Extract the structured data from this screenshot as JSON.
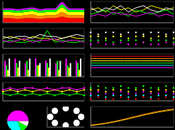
{
  "chart_data": [
    {
      "type": "area",
      "stacked": true,
      "grid": false,
      "tick_labels": false,
      "categories": [
        null,
        null,
        null,
        null,
        null,
        null,
        null,
        null,
        null,
        null,
        null,
        null
      ],
      "ylim": [
        0,
        14
      ],
      "series": [
        {
          "color": "#ff0000",
          "values": [
            3,
            3,
            2.5,
            3,
            3,
            2.5,
            3,
            3,
            4,
            3,
            3,
            3
          ]
        },
        {
          "color": "#ff8800",
          "values": [
            2,
            2,
            2,
            2,
            2.5,
            2,
            2,
            2,
            3,
            2,
            2,
            2
          ]
        },
        {
          "color": "#ffff00",
          "values": [
            2,
            2,
            2,
            2,
            2,
            2,
            2,
            2,
            3,
            2,
            2,
            2
          ]
        },
        {
          "color": "#00ff00",
          "values": [
            1.5,
            1.5,
            1.5,
            1.5,
            1.5,
            1.5,
            1.5,
            1.5,
            2,
            1.5,
            1.5,
            1.5
          ]
        },
        {
          "color": "#cc00ff",
          "values": [
            1,
            1,
            1,
            1,
            1,
            1,
            1,
            1,
            1.5,
            1,
            1,
            1
          ]
        }
      ]
    },
    {
      "type": "line",
      "grid": true,
      "tick_labels": false,
      "marker": "none",
      "line_style": "solid",
      "categories": [
        null,
        null,
        null,
        null,
        null,
        null,
        null,
        null,
        null,
        null,
        null,
        null
      ],
      "ylim": [
        0,
        10
      ],
      "series": [
        {
          "color": "#ffff00",
          "values": [
            6,
            7,
            5,
            8,
            6,
            7,
            5,
            6,
            8,
            7,
            6,
            7
          ]
        },
        {
          "color": "#00ff00",
          "values": [
            4,
            5,
            6,
            4,
            5,
            3,
            6,
            5,
            4,
            5,
            6,
            4
          ]
        },
        {
          "color": "#ffffff",
          "values": [
            7,
            5,
            7,
            6,
            8,
            5,
            7,
            8,
            6,
            5,
            7,
            6
          ]
        },
        {
          "color": "#ff00ff",
          "values": [
            3,
            4,
            3,
            5,
            4,
            4,
            3,
            4,
            5,
            3,
            4,
            3
          ]
        }
      ]
    },
    {
      "type": "line",
      "grid": true,
      "tick_labels": false,
      "marker": "none",
      "line_style": "solid",
      "categories": [
        null,
        null,
        null,
        null,
        null,
        null,
        null,
        null,
        null,
        null,
        null,
        null
      ],
      "ylim": [
        0,
        10
      ],
      "series": [
        {
          "color": "#ffff00",
          "values": [
            5,
            6,
            5,
            4,
            6,
            5,
            5,
            4,
            5,
            6,
            5,
            5
          ]
        },
        {
          "color": "#00ff00",
          "values": [
            3,
            4,
            3,
            3,
            4,
            3,
            9,
            3,
            4,
            3,
            3,
            4
          ]
        },
        {
          "color": "#ffffff",
          "values": [
            6,
            5,
            6,
            6,
            5,
            7,
            6,
            6,
            5,
            6,
            7,
            6
          ]
        },
        {
          "color": "#ff00ff",
          "values": [
            4,
            3,
            4,
            5,
            3,
            4,
            4,
            5,
            3,
            4,
            4,
            3
          ]
        }
      ]
    },
    {
      "type": "line",
      "grid": true,
      "tick_labels": false,
      "marker": "circle",
      "line_style": "none",
      "categories": [
        null,
        null,
        null,
        null,
        null,
        null,
        null,
        null,
        null,
        null,
        null,
        null
      ],
      "ylim": [
        0,
        10
      ],
      "series": [
        {
          "color": "#ffffff",
          "values": [
            8,
            7,
            8,
            8,
            7,
            8,
            8,
            7,
            8,
            8,
            7,
            8
          ]
        },
        {
          "color": "#ffff00",
          "values": [
            6,
            6,
            5,
            6,
            6,
            5,
            6,
            6,
            5,
            6,
            6,
            5
          ]
        },
        {
          "color": "#00ff00",
          "values": [
            4,
            4,
            4,
            3,
            4,
            4,
            4,
            3,
            4,
            4,
            4,
            3
          ]
        },
        {
          "color": "#ff00ff",
          "values": [
            2,
            3,
            2,
            2,
            3,
            2,
            2,
            3,
            2,
            2,
            3,
            2
          ]
        }
      ]
    },
    {
      "type": "bar",
      "grid": true,
      "tick_labels": false,
      "categories": [
        null,
        null,
        null,
        null,
        null,
        null,
        null,
        null
      ],
      "ylim": [
        0,
        10
      ],
      "series": [
        {
          "color": "#ff00ff",
          "values": [
            7,
            8,
            6,
            8,
            7,
            6,
            8,
            7
          ]
        },
        {
          "color": "#00ff00",
          "values": [
            5,
            6,
            7,
            5,
            6,
            7,
            5,
            6
          ]
        },
        {
          "color": "#ffff00",
          "values": [
            3,
            4,
            3,
            5,
            4,
            3,
            4,
            3
          ]
        },
        {
          "color": "#ffffff",
          "values": [
            8,
            7,
            8,
            6,
            8,
            7,
            6,
            8
          ]
        }
      ]
    },
    {
      "type": "line",
      "grid": true,
      "tick_labels": false,
      "marker": "none",
      "line_style": "solid",
      "categories": [
        null,
        null,
        null,
        null,
        null,
        null
      ],
      "ylim": [
        0,
        10
      ],
      "series": [
        {
          "color": "#ff0000",
          "values": [
            9,
            9,
            9,
            9,
            9,
            9
          ]
        },
        {
          "color": "#ff8800",
          "values": [
            8,
            8,
            8,
            8,
            8,
            8
          ]
        },
        {
          "color": "#ffff00",
          "values": [
            7,
            7,
            7,
            7,
            7,
            7
          ]
        },
        {
          "color": "#00ff00",
          "values": [
            6,
            6,
            6,
            6,
            6,
            6
          ]
        },
        {
          "color": "#00ffff",
          "values": [
            5,
            5,
            5,
            5,
            5,
            5
          ]
        },
        {
          "color": "#ff00ff",
          "values": [
            4,
            4,
            4,
            4,
            4,
            4
          ]
        }
      ]
    },
    {
      "type": "line",
      "grid": true,
      "tick_labels": false,
      "marker": "circle",
      "line_style": "solid",
      "categories": [
        null,
        null,
        null,
        null,
        null,
        null,
        null,
        null,
        null,
        null,
        null,
        null
      ],
      "ylim": [
        0,
        10
      ],
      "series": [
        {
          "color": "#ffff00",
          "values": [
            5,
            6,
            5,
            6,
            5,
            6,
            5,
            6,
            5,
            6,
            5,
            6
          ]
        },
        {
          "color": "#00ff00",
          "values": [
            4,
            3,
            4,
            3,
            4,
            3,
            4,
            3,
            4,
            3,
            4,
            3
          ]
        },
        {
          "color": "#ff00ff",
          "values": [
            6,
            7,
            6,
            7,
            7,
            6,
            7,
            6,
            7,
            7,
            6,
            7
          ]
        }
      ]
    },
    {
      "type": "line",
      "grid": true,
      "tick_labels": false,
      "marker": "circle",
      "line_style": "none",
      "categories": [
        null,
        null,
        null,
        null,
        null,
        null,
        null,
        null,
        null,
        null,
        null,
        null
      ],
      "ylim": [
        0,
        10
      ],
      "series": [
        {
          "color": "#00ff00",
          "values": [
            7,
            8,
            7,
            7,
            8,
            7,
            7,
            8,
            7,
            7,
            8,
            7
          ]
        },
        {
          "color": "#ffff00",
          "values": [
            6,
            6,
            5,
            6,
            6,
            5,
            6,
            6,
            5,
            6,
            6,
            5
          ]
        },
        {
          "color": "#ff00ff",
          "values": [
            4,
            5,
            4,
            4,
            5,
            4,
            4,
            5,
            4,
            4,
            5,
            4
          ]
        },
        {
          "color": "#00ffff",
          "values": [
            3,
            3,
            2,
            3,
            3,
            2,
            3,
            3,
            2,
            3,
            3,
            2
          ]
        },
        {
          "color": "#ff0000",
          "values": [
            1,
            2,
            1,
            1,
            2,
            1,
            1,
            2,
            1,
            1,
            2,
            1
          ]
        }
      ]
    },
    {
      "type": "pie",
      "values": [
        50,
        30,
        12,
        8
      ],
      "colors": [
        "#ff00ff",
        "#00ffff",
        "#00ff00",
        "#ffffff"
      ]
    },
    {
      "type": "scatter",
      "tick_labels": false,
      "grid": false,
      "color": "#ffffff",
      "x": [
        0,
        0.7,
        1,
        0.7,
        0,
        -0.7,
        -1,
        -0.7
      ],
      "values": [
        1,
        0.7,
        0,
        -0.7,
        -1,
        -0.7,
        0,
        0.7
      ],
      "xlim": [
        -1.2,
        1.2
      ],
      "ylim": [
        -1.2,
        1.2
      ]
    },
    {
      "type": "line",
      "grid": true,
      "tick_labels": false,
      "marker": "none",
      "line_style": "solid",
      "categories": [
        null,
        null,
        null,
        null,
        null,
        null,
        null,
        null,
        null,
        null,
        null,
        null
      ],
      "ylim": [
        0,
        10
      ],
      "series": [
        {
          "color": "#ff8800",
          "values": [
            1,
            1.5,
            2,
            2.7,
            3.5,
            4.4,
            5.3,
            6.2,
            7,
            7.7,
            8.3,
            8.8
          ]
        },
        {
          "color": "#ffcc00",
          "values": [
            0.8,
            1.2,
            1.8,
            2.4,
            3.2,
            4,
            4.9,
            5.8,
            6.6,
            7.3,
            7.9,
            8.4
          ]
        }
      ]
    }
  ]
}
